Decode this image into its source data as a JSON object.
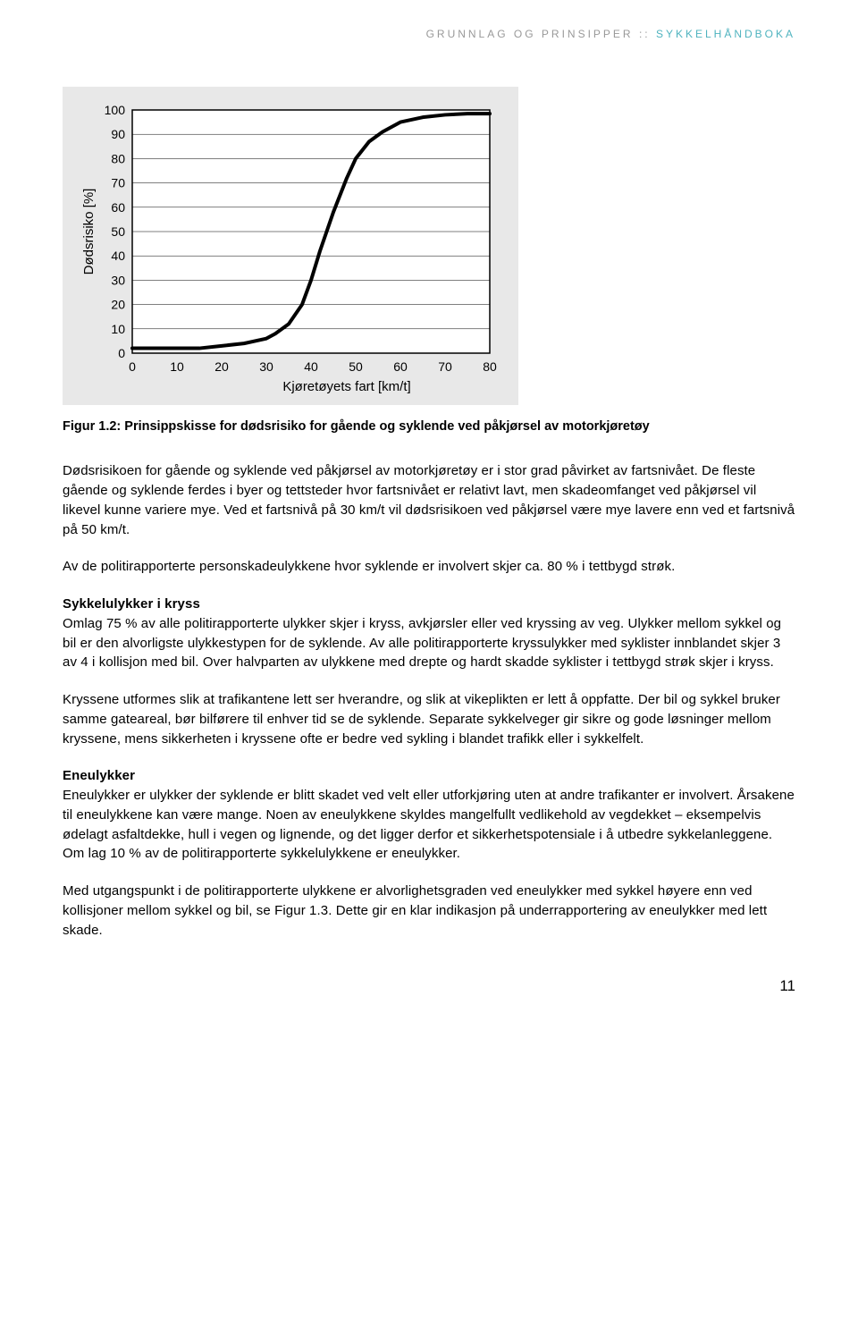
{
  "header": {
    "left": "GRUNNLAG OG PRINSIPPER",
    "separator": "::",
    "left_color": "#b0b0b0",
    "right": "SYKKELHÅNDBOKA",
    "right_color": "#4fb3bf"
  },
  "chart": {
    "type": "line",
    "background": "#e8e8e8",
    "plot_bg": "#ffffff",
    "frame_stroke": "#000000",
    "frame_stroke_width": 1.5,
    "grid_color": "#000000",
    "grid_width": 0.5,
    "xlim": [
      0,
      80
    ],
    "ylim": [
      0,
      100
    ],
    "xticks": [
      0,
      10,
      20,
      30,
      40,
      50,
      60,
      70,
      80
    ],
    "yticks": [
      0,
      10,
      20,
      30,
      40,
      50,
      60,
      70,
      80,
      90,
      100
    ],
    "xlabel": "Kjøretøyets fart [km/t]",
    "ylabel": "Dødsrisiko [%]",
    "tick_fontsize": 14,
    "label_fontsize": 15,
    "line_color": "#000000",
    "line_width": 4,
    "points": [
      [
        0,
        2
      ],
      [
        10,
        2
      ],
      [
        15,
        2
      ],
      [
        20,
        3
      ],
      [
        25,
        4
      ],
      [
        30,
        6
      ],
      [
        32,
        8
      ],
      [
        35,
        12
      ],
      [
        38,
        20
      ],
      [
        40,
        30
      ],
      [
        42,
        42
      ],
      [
        45,
        58
      ],
      [
        48,
        72
      ],
      [
        50,
        80
      ],
      [
        53,
        87
      ],
      [
        56,
        91
      ],
      [
        60,
        95
      ],
      [
        65,
        97
      ],
      [
        70,
        98
      ],
      [
        75,
        98.5
      ],
      [
        80,
        98.5
      ]
    ]
  },
  "figure_caption": "Figur 1.2: Prinsippskisse for dødsrisiko for gående og syklende ved påkjørsel av motorkjøretøy",
  "paragraphs": {
    "p1": "Dødsrisikoen for gående og syklende ved påkjørsel av motorkjøretøy er i stor grad påvirket av fartsnivået. De fleste gående og syklende ferdes i byer og tettsteder hvor fartsnivået er relativt lavt, men skadeomfanget ved påkjørsel vil likevel kunne variere mye. Ved et fartsnivå på 30 km/t vil døds­risikoen ved påkjørsel være mye lavere enn ved et fartsnivå på 50 km/t.",
    "p2": "Av de politirapporterte personskadeulykkene hvor syklende er involvert skjer ca. 80 % i tettbygd strøk.",
    "h1": "Sykkelulykker i kryss",
    "p3": "Omlag 75 % av alle politirapporterte ulykker skjer i kryss, avkjørsler eller ved kryssing av veg. Ulykker mellom sykkel og bil er den alvorligste ulykkestypen for de syklende. Av alle politirapporterte kryss­ulykker med syklister innblandet skjer 3 av 4 i kollisjon med bil. Over halvparten av ulykkene med drepte og hardt skadde syklister i tettbygd strøk skjer i kryss.",
    "p4": "Kryssene utformes slik at trafikantene lett ser hverandre, og slik at vikeplikten er lett å oppfatte. Der bil og sykkel bruker samme gateareal, bør bilførere til enhver tid se de syklende. Separate sykkelveger gir sikre og gode løsninger mellom kryssene, mens sikkerheten i kryssene ofte er bedre ved sykling i blandet trafikk eller i sykkelfelt.",
    "h2": "Eneulykker",
    "p5": "Eneulykker er ulykker der syklende er blitt skadet ved velt eller utforkjøring uten at andre trafikanter er involvert. Årsakene til eneulykkene kan være mange. Noen av eneulykkene skyldes mangelfullt ved­likehold av vegdekket – eksempelvis ødelagt asfaltdekke, hull i vegen og lignende, og det ligger derfor et sikkerhetspotensiale i å utbedre sykkelanleggene. Om lag 10 % av de politirapporterte sykkelulykkene er eneulykker.",
    "p6": "Med utgangspunkt i de politirapporterte ulykkene er alvorlighetsgraden ved eneulykker med sykkel høyere enn ved kollisjoner mellom sykkel og bil, se Figur 1.3. Dette gir en klar indikasjon på under­rapportering av eneulykker med lett skade."
  },
  "page_number": "11"
}
